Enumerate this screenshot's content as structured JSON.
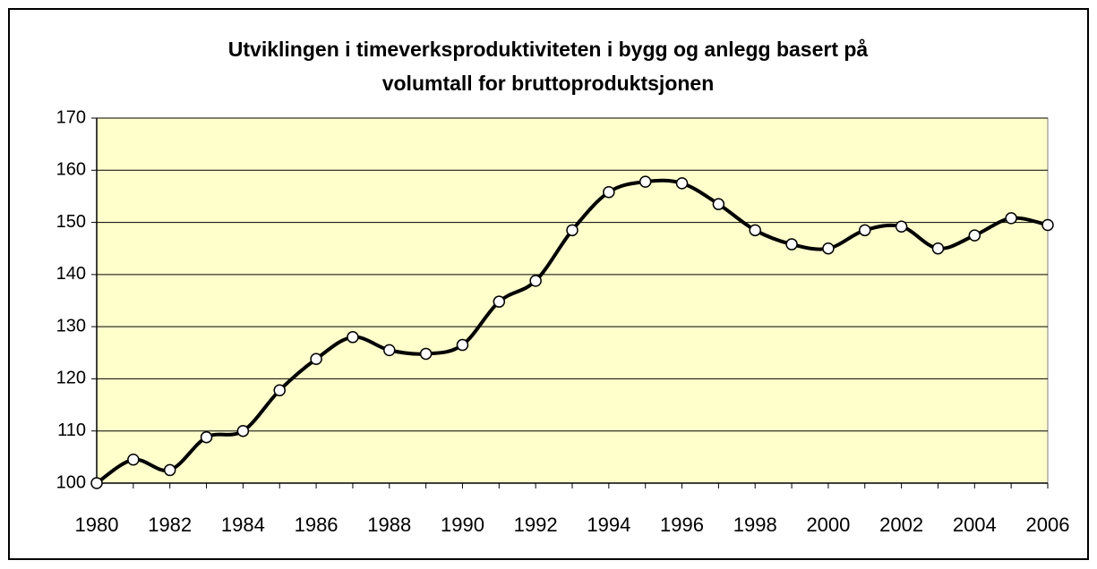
{
  "chart_data": {
    "type": "line",
    "title": [
      "Utviklingen i timeverksproduktiviteten i bygg og anlegg basert på",
      "volumtall for bruttoproduktsjonen"
    ],
    "x": [
      1980,
      1981,
      1982,
      1983,
      1984,
      1985,
      1986,
      1987,
      1988,
      1989,
      1990,
      1991,
      1992,
      1993,
      1994,
      1995,
      1996,
      1997,
      1998,
      1999,
      2000,
      2001,
      2002,
      2003,
      2004,
      2005,
      2006
    ],
    "series": [
      {
        "color": "#000000",
        "values": [
          100,
          104.5,
          102.5,
          108.8,
          110,
          117.8,
          123.8,
          128,
          125.5,
          124.8,
          126.5,
          134.8,
          138.8,
          148.5,
          155.8,
          157.8,
          157.5,
          153.5,
          148.5,
          145.8,
          145,
          148.5,
          149.2,
          145,
          147.5,
          150.8,
          149.5
        ]
      }
    ],
    "xlim": [
      1980,
      2006
    ],
    "xticks": [
      1980,
      1982,
      1984,
      1986,
      1988,
      1990,
      1992,
      1994,
      1996,
      1998,
      2000,
      2002,
      2004,
      2006
    ],
    "ylim": [
      100,
      170
    ],
    "yticks": [
      100,
      110,
      120,
      130,
      140,
      150,
      160,
      170
    ],
    "grid": true,
    "smooth": true,
    "background": "#ffffcc"
  }
}
